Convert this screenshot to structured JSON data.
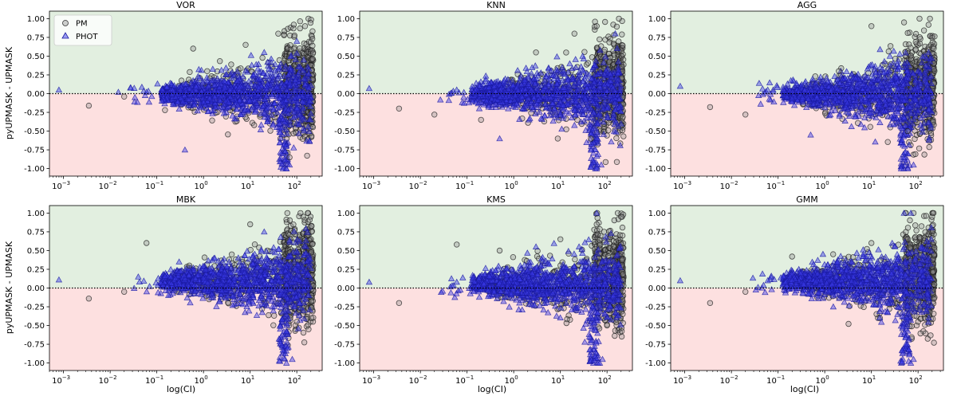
{
  "chart_data": {
    "type": "scatter",
    "figure": "Six-panel comparison of pyUPMASK vs UPMASK membership probabilities",
    "ylabel": "pyUPMASK - UPMASK",
    "xlabel": "log(CI)",
    "xscale": "log",
    "xlim": [
      0.0005,
      350
    ],
    "ylim": [
      -1.1,
      1.1
    ],
    "xtick_exponents": [
      -3,
      -2,
      -1,
      0,
      1,
      2
    ],
    "yticks": [
      "1.00",
      "0.75",
      "0.50",
      "0.25",
      "0.00",
      "-0.25",
      "-0.50",
      "-0.75",
      "-1.00"
    ],
    "ytick_values": [
      1.0,
      0.75,
      0.5,
      0.25,
      0.0,
      -0.25,
      -0.5,
      -0.75,
      -1.0
    ],
    "xtick_base": "10",
    "positive_region_color": "#e2efe0",
    "negative_region_color": "#fde0e0",
    "reference_line": 0.0,
    "legend": {
      "location": "top-left",
      "entries": [
        {
          "name": "PM",
          "marker": "circle",
          "color": "#8a8a8a",
          "edge": "#333333"
        },
        {
          "name": "PHOT",
          "marker": "triangle",
          "color": "#3333ee",
          "edge": "#1a1aa0"
        }
      ]
    },
    "panels": [
      {
        "title": "VOR",
        "series": [
          {
            "name": "PM",
            "outliers": [
              [
                0.0035,
                -0.16
              ],
              [
                0.02,
                -0.04
              ],
              [
                0.15,
                -0.22
              ],
              [
                0.6,
                0.6
              ],
              [
                1.2,
                0.3
              ],
              [
                8,
                0.65
              ],
              [
                40,
                0.8
              ],
              [
                150,
                0.9
              ],
              [
                70,
                -0.85
              ]
            ]
          },
          {
            "name": "PHOT",
            "outliers": [
              [
                0.0008,
                0.05
              ],
              [
                0.015,
                0.02
              ],
              [
                0.06,
                0.02
              ],
              [
                0.4,
                -0.75
              ],
              [
                60,
                -1.0
              ],
              [
                70,
                -0.95
              ],
              [
                20,
                0.55
              ],
              [
                100,
                0.7
              ]
            ]
          }
        ]
      },
      {
        "title": "KNN",
        "series": [
          {
            "name": "PM",
            "outliers": [
              [
                0.0035,
                -0.2
              ],
              [
                0.02,
                -0.28
              ],
              [
                0.2,
                -0.35
              ],
              [
                3,
                0.55
              ],
              [
                20,
                0.8
              ],
              [
                60,
                0.9
              ],
              [
                180,
                1.0
              ],
              [
                45,
                -0.6
              ]
            ]
          },
          {
            "name": "PHOT",
            "outliers": [
              [
                0.0008,
                0.07
              ],
              [
                0.06,
                0.05
              ],
              [
                0.5,
                -0.6
              ],
              [
                60,
                -1.0
              ],
              [
                75,
                -0.95
              ],
              [
                30,
                0.5
              ],
              [
                150,
                0.8
              ]
            ]
          }
        ]
      },
      {
        "title": "AGG",
        "series": [
          {
            "name": "PM",
            "outliers": [
              [
                0.0035,
                -0.18
              ],
              [
                0.02,
                -0.28
              ],
              [
                2,
                0.3
              ],
              [
                10,
                0.9
              ],
              [
                50,
                0.95
              ],
              [
                180,
                1.0
              ],
              [
                60,
                -0.5
              ]
            ]
          },
          {
            "name": "PHOT",
            "outliers": [
              [
                0.0008,
                0.1
              ],
              [
                0.06,
                0.05
              ],
              [
                0.5,
                -0.55
              ],
              [
                60,
                -1.0
              ],
              [
                80,
                -0.95
              ],
              [
                25,
                0.5
              ]
            ]
          }
        ]
      },
      {
        "title": "MBK",
        "series": [
          {
            "name": "PM",
            "outliers": [
              [
                0.0035,
                -0.14
              ],
              [
                0.02,
                -0.05
              ],
              [
                0.06,
                0.6
              ],
              [
                0.5,
                0.3
              ],
              [
                10,
                0.85
              ],
              [
                120,
                1.0
              ],
              [
                100,
                -0.45
              ]
            ]
          },
          {
            "name": "PHOT",
            "outliers": [
              [
                0.0008,
                0.11
              ],
              [
                0.04,
                0.15
              ],
              [
                0.3,
                0.35
              ],
              [
                60,
                -1.0
              ],
              [
                80,
                -0.95
              ],
              [
                20,
                0.75
              ]
            ]
          }
        ]
      },
      {
        "title": "KMS",
        "series": [
          {
            "name": "PM",
            "outliers": [
              [
                0.0035,
                -0.2
              ],
              [
                0.06,
                0.58
              ],
              [
                0.5,
                0.5
              ],
              [
                10,
                0.65
              ],
              [
                60,
                0.85
              ],
              [
                200,
                0.95
              ],
              [
                100,
                -0.5
              ]
            ]
          },
          {
            "name": "PHOT",
            "outliers": [
              [
                0.0008,
                0.08
              ],
              [
                0.06,
                0.08
              ],
              [
                3,
                0.55
              ],
              [
                60,
                1.0
              ],
              [
                70,
                -1.0
              ],
              [
                80,
                -0.95
              ]
            ]
          }
        ]
      },
      {
        "title": "GMM",
        "series": [
          {
            "name": "PM",
            "outliers": [
              [
                0.0035,
                -0.2
              ],
              [
                0.02,
                -0.05
              ],
              [
                0.2,
                0.42
              ],
              [
                10,
                0.6
              ],
              [
                80,
                1.0
              ],
              [
                200,
                0.95
              ],
              [
                100,
                -0.45
              ]
            ]
          },
          {
            "name": "PHOT",
            "outliers": [
              [
                0.0008,
                0.1
              ],
              [
                0.06,
                0.1
              ],
              [
                50,
                1.0
              ],
              [
                70,
                1.0
              ],
              [
                70,
                -1.0
              ],
              [
                80,
                -0.95
              ]
            ]
          }
        ]
      }
    ]
  }
}
